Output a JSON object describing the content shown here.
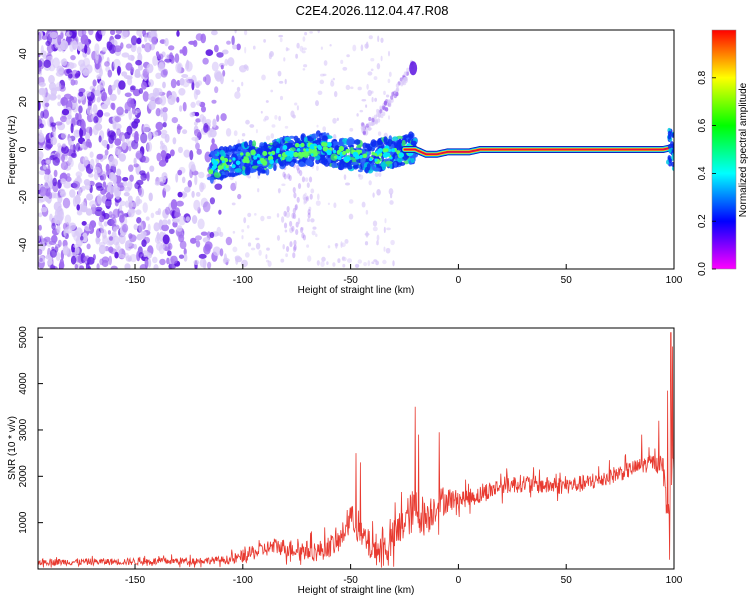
{
  "title": "C2E4.2026.112.04.47.R08",
  "colors": {
    "background": "#ffffff",
    "snr_line": "#e83a30",
    "scatter_light": "#d8c8f8",
    "scatter_mid": "#9f6bf0",
    "scatter_dark": "#5a12e0",
    "track_outer": "#0a2af0",
    "track_core": "#e01040"
  },
  "chart_data": [
    {
      "id": "spectrogram",
      "type": "heatmap",
      "xlabel": "Height of straight line (km)",
      "ylabel": "Frequency (Hz)",
      "xlim": [
        -195,
        100
      ],
      "ylim": [
        -50,
        50
      ],
      "xticks": [
        -150,
        -100,
        -50,
        0,
        50,
        100
      ],
      "yticks": [
        -40,
        -20,
        0,
        20,
        40
      ],
      "grid": false,
      "colorbar": {
        "label": "Normalized spectral amplitude",
        "range": [
          0,
          1
        ],
        "ticks": [
          "0.0",
          "0.2",
          "0.4",
          "0.6",
          "0.8"
        ],
        "colormap": [
          "#ff00ff",
          "#0000ff",
          "#00ffff",
          "#00ff00",
          "#ffff00",
          "#ff0000"
        ]
      },
      "track": {
        "x": [
          -115,
          -110,
          -100,
          -95,
          -90,
          -85,
          -80,
          -75,
          -70,
          -65,
          -60,
          -55,
          -50,
          -45,
          -40,
          -35,
          -30,
          -25,
          -20,
          -15,
          -10,
          -5,
          0,
          5,
          10,
          20,
          40,
          60,
          80,
          95,
          100
        ],
        "y": [
          -7,
          -6,
          -4,
          -3,
          -4,
          -2,
          -1,
          0,
          -1,
          1,
          0,
          -2,
          -2,
          -3,
          -3,
          -2,
          -1,
          0,
          0,
          -2,
          -2,
          -1,
          -1,
          -1,
          0,
          0,
          0,
          0,
          0,
          0,
          1
        ]
      },
      "track_thin_segment": {
        "x": [
          -20,
          100
        ],
        "y": 0
      },
      "upper_branch": {
        "x": [
          -45,
          -40,
          -35,
          -30,
          -25,
          -20
        ],
        "y": [
          8,
          12,
          16,
          22,
          30,
          37
        ]
      },
      "scatter_extent_x": [
        -195,
        -105
      ],
      "sparse_extent_x": [
        -105,
        -30
      ]
    },
    {
      "id": "snr",
      "type": "line",
      "xlabel": "Height of straight line (km)",
      "ylabel": "SNR (10 * v/v)",
      "xlim": [
        -195,
        100
      ],
      "ylim": [
        0,
        5200
      ],
      "xticks": [
        -150,
        -100,
        -50,
        0,
        50,
        100
      ],
      "yticks": [
        1000,
        2000,
        3000,
        4000,
        5000
      ],
      "grid": false,
      "envelope": {
        "x": [
          -195,
          -150,
          -120,
          -105,
          -95,
          -85,
          -75,
          -65,
          -55,
          -50,
          -45,
          -40,
          -35,
          -30,
          -25,
          -20,
          -15,
          -10,
          -5,
          0,
          10,
          20,
          30,
          40,
          50,
          60,
          70,
          80,
          90,
          95,
          97,
          99,
          100
        ],
        "y": [
          150,
          160,
          180,
          200,
          350,
          500,
          420,
          380,
          600,
          1150,
          700,
          450,
          400,
          650,
          1050,
          1300,
          1100,
          1400,
          1500,
          1500,
          1600,
          1800,
          1850,
          1800,
          1800,
          1850,
          2000,
          2150,
          2300,
          2250,
          1200,
          2000,
          2400
        ]
      },
      "noise_scale": {
        "x": [
          -195,
          -110,
          -100,
          -60,
          -40,
          -20,
          -10,
          0,
          100
        ],
        "y": [
          90,
          100,
          180,
          300,
          420,
          600,
          450,
          250,
          220
        ]
      },
      "spikes": [
        {
          "x": -47.5,
          "y": 2500
        },
        {
          "x": -45.5,
          "y": 2300
        },
        {
          "x": -20.0,
          "y": 3500
        },
        {
          "x": -18.5,
          "y": 2900
        },
        {
          "x": -9.0,
          "y": 2950
        },
        {
          "x": 85.0,
          "y": 2900
        },
        {
          "x": 93.0,
          "y": 3200
        },
        {
          "x": 97.0,
          "y": 3850
        },
        {
          "x": 98.5,
          "y": 5100
        },
        {
          "x": 99.4,
          "y": 4800
        },
        {
          "x": 98.0,
          "y": 200
        }
      ]
    }
  ]
}
